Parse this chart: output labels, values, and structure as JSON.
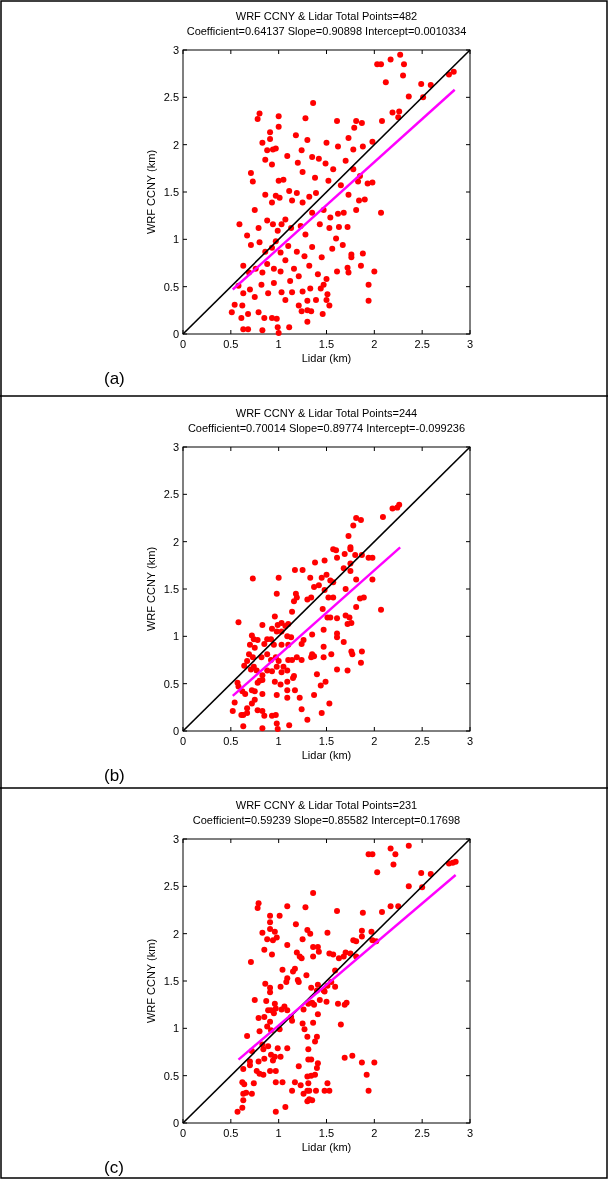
{
  "chart_data": [
    {
      "type": "scatter",
      "title": "WRF CCNY & Lidar Total Points=482",
      "subtitle": "Coefficient=0.64137 Slope=0.90898 Intercept=0.0010334",
      "xlabel": "Lidar (km)",
      "ylabel": "WRF CCNY (km)",
      "annotations": [
        "(a)"
      ],
      "xlim": [
        0,
        3
      ],
      "ylim": [
        0,
        3
      ],
      "xticks": [
        0,
        0.5,
        1,
        1.5,
        2,
        2.5,
        3
      ],
      "yticks": [
        0,
        0.5,
        1,
        1.5,
        2,
        2.5,
        3
      ],
      "series": [
        {
          "color": "#ff0000",
          "marker": "circle",
          "x": [
            2.03,
            2.07,
            2.17,
            2.27,
            2.31,
            2.3,
            2.12,
            2.36,
            2.49,
            2.51,
            2.59,
            2.78,
            2.83,
            2.08,
            2.19,
            2.26,
            2.25,
            0.78,
            0.8,
            1.0,
            1.28,
            1.36,
            1.61,
            1.81,
            1.87,
            1.79,
            1.0,
            0.91,
            1.18,
            1.73,
            1.88,
            1.98,
            0.83,
            0.91,
            0.94,
            0.97,
            0.88,
            1.3,
            1.24,
            1.5,
            1.62,
            0.86,
            0.93,
            1.09,
            1.35,
            1.42,
            1.2,
            1.49,
            1.57,
            1.7,
            1.78,
            0.71,
            0.73,
            1.0,
            1.05,
            1.25,
            1.38,
            1.52,
            1.65,
            1.78,
            1.83,
            1.93,
            1.98,
            1.85,
            0.75,
            0.86,
            0.93,
            0.97,
            1.01,
            1.11,
            1.14,
            1.19,
            1.25,
            1.32,
            1.39,
            1.35,
            1.47,
            1.54,
            1.62,
            1.68,
            1.73,
            1.81,
            1.9,
            1.84,
            2.07,
            0.59,
            0.79,
            0.88,
            0.94,
            0.99,
            1.03,
            1.07,
            1.13,
            1.23,
            1.28,
            1.43,
            1.53,
            1.63,
            1.6,
            1.72,
            0.67,
            0.71,
            0.8,
            0.86,
            0.93,
            0.97,
            1.02,
            1.1,
            1.19,
            1.27,
            1.35,
            1.45,
            1.56,
            1.67,
            1.76,
            1.88,
            1.76,
            1.86,
            1.72,
            1.73,
            1.61,
            2.0,
            0.63,
            0.69,
            0.76,
            0.83,
            0.88,
            0.95,
            1.02,
            1.07,
            1.16,
            1.21,
            1.32,
            1.41,
            1.5,
            1.47,
            0.58,
            0.63,
            0.7,
            0.75,
            0.82,
            0.89,
            0.95,
            1.03,
            1.12,
            1.14,
            1.25,
            1.33,
            1.44,
            1.51,
            1.5,
            1.53,
            1.94,
            1.94,
            0.54,
            0.51,
            0.62,
            0.68,
            0.61,
            0.79,
            0.85,
            0.93,
            0.98,
            1.21,
            1.24,
            1.3,
            1.34,
            1.3,
            1.46,
            1.39,
            1.3,
            0.63,
            0.83,
            0.99,
            1.0,
            1.11,
            1.07,
            0.68
          ],
          "values": [
            2.85,
            2.85,
            2.9,
            2.95,
            2.85,
            2.73,
            2.66,
            2.51,
            2.64,
            2.5,
            2.63,
            2.74,
            2.77,
            2.25,
            2.34,
            2.35,
            2.29,
            2.27,
            2.33,
            2.3,
            2.28,
            2.44,
            2.25,
            2.25,
            2.23,
            2.18,
            2.19,
            2.13,
            2.1,
            2.07,
            1.98,
            2.03,
            2.02,
            2.06,
            1.95,
            1.96,
            1.94,
            2.05,
            1.94,
            2.02,
            1.98,
            1.84,
            1.79,
            1.88,
            1.87,
            1.85,
            1.81,
            1.8,
            1.74,
            1.83,
            1.95,
            1.7,
            1.61,
            1.62,
            1.63,
            1.71,
            1.65,
            1.62,
            1.57,
            1.74,
            1.61,
            1.59,
            1.6,
            1.67,
            1.31,
            1.47,
            1.39,
            1.46,
            1.44,
            1.51,
            1.41,
            1.49,
            1.39,
            1.45,
            1.49,
            1.28,
            1.31,
            1.23,
            1.27,
            1.28,
            1.47,
            1.31,
            1.42,
            1.41,
            1.28,
            1.16,
            1.12,
            1.2,
            1.16,
            1.09,
            1.16,
            1.21,
            1.12,
            1.14,
            1.05,
            1.16,
            1.12,
            1.13,
            1.01,
            1.13,
            1.04,
            0.94,
            0.97,
            0.87,
            0.91,
            0.98,
            0.86,
            0.93,
            0.87,
            0.82,
            0.92,
            0.81,
            0.9,
            0.94,
            0.84,
            0.85,
            0.81,
            0.72,
            0.7,
            0.65,
            0.66,
            0.66,
            0.72,
            0.65,
            0.69,
            0.65,
            0.74,
            0.69,
            0.66,
            0.78,
            0.69,
            0.61,
            0.72,
            0.63,
            0.58,
            0.52,
            0.51,
            0.43,
            0.47,
            0.39,
            0.52,
            0.43,
            0.54,
            0.44,
            0.56,
            0.44,
            0.45,
            0.48,
            0.48,
            0.42,
            0.36,
            0.3,
            0.52,
            0.35,
            0.31,
            0.23,
            0.3,
            0.21,
            0.17,
            0.23,
            0.17,
            0.17,
            0.16,
            0.3,
            0.24,
            0.25,
            0.24,
            0.13,
            0.21,
            0.36,
            0.35,
            0.05,
            0.04,
            0.07,
            0.01,
            0.07,
            0.36,
            0.05
          ]
        },
        {
          "type": "line",
          "color": "#000000",
          "x": [
            0,
            3
          ],
          "values": [
            0,
            3
          ]
        },
        {
          "type": "line",
          "color": "#ff00ff",
          "x": [
            0.52,
            2.84
          ],
          "values": [
            0.47,
            2.58
          ]
        }
      ]
    },
    {
      "type": "scatter",
      "title": "WRF CCNY & Lidar Total Points=244",
      "subtitle": "Coefficient=0.70014 Slope=0.89774 Intercept=-0.099236",
      "xlabel": "Lidar (km)",
      "ylabel": "WRF CCNY (km)",
      "annotations": [
        "(b)"
      ],
      "xlim": [
        0,
        3
      ],
      "ylim": [
        0,
        3
      ],
      "xticks": [
        0,
        0.5,
        1,
        1.5,
        2,
        2.5,
        3
      ],
      "yticks": [
        0,
        0.5,
        1,
        1.5,
        2,
        2.5,
        3
      ],
      "series": [
        {
          "color": "#ff0000",
          "marker": "circle",
          "x": [
            2.19,
            2.24,
            2.26,
            2.09,
            1.81,
            1.86,
            1.78,
            1.73,
            1.75,
            1.75,
            1.57,
            1.6,
            1.61,
            1.69,
            1.8,
            1.87,
            1.94,
            1.98,
            1.48,
            1.38,
            1.17,
            1.25,
            1.5,
            1.68,
            1.75,
            1.75,
            1.42,
            1.33,
            1.37,
            1.45,
            1.54,
            1.57,
            0.73,
            1.0,
            0.98,
            1.18,
            1.19,
            1.48,
            1.52,
            1.57,
            1.7,
            1.81,
            1.98,
            1.89,
            1.85,
            1.81,
            2.07,
            1.14,
            1.16,
            1.3,
            1.34,
            1.46,
            1.51,
            1.54,
            1.61,
            1.7,
            1.74,
            1.72,
            1.76,
            0.58,
            0.83,
            0.96,
            0.99,
            1.03,
            1.07,
            1.1,
            0.93,
            0.98,
            1.03,
            1.09,
            0.72,
            0.74,
            0.78,
            0.88,
            0.92,
            0.7,
            0.75,
            0.85,
            0.95,
            1.03,
            1.1,
            1.13,
            1.24,
            1.26,
            1.35,
            1.47,
            1.61,
            1.61,
            1.68,
            1.76,
            1.77,
            1.87,
            1.86,
            1.55,
            1.47,
            1.47,
            1.35,
            1.37,
            1.34,
            1.61,
            1.72,
            0.69,
            0.73,
            0.67,
            0.74,
            0.82,
            0.88,
            0.92,
            0.97,
            1.0,
            1.05,
            1.1,
            1.19,
            1.14,
            1.24,
            0.64,
            0.71,
            0.77,
            0.83,
            0.88,
            0.93,
            0.98,
            1.03,
            1.09,
            1.16,
            1.15,
            1.4,
            1.44,
            1.49,
            0.57,
            0.58,
            0.62,
            0.65,
            0.72,
            0.78,
            0.8,
            0.83,
            0.75,
            0.75,
            0.72,
            0.83,
            0.96,
            0.98,
            1.02,
            1.09,
            1.09,
            1.09,
            1.17,
            1.22,
            1.37,
            1.24,
            1.53,
            1.45,
            1.3,
            0.52,
            0.54,
            0.61,
            0.63,
            0.67,
            0.67,
            0.63,
            0.78,
            0.83,
            0.85,
            0.93,
            0.97,
            0.98,
            0.99,
            0.83,
            1.11
          ],
          "values": [
            2.35,
            2.36,
            2.39,
            2.26,
            2.25,
            2.23,
            2.17,
            2.06,
            1.94,
            1.92,
            1.92,
            1.91,
            1.83,
            1.87,
            1.86,
            1.86,
            1.83,
            1.83,
            1.8,
            1.78,
            1.7,
            1.7,
            1.65,
            1.72,
            1.69,
            1.77,
            1.54,
            1.62,
            1.52,
            1.62,
            1.59,
            1.57,
            1.61,
            1.62,
            1.45,
            1.45,
            1.41,
            1.49,
            1.41,
            1.41,
            1.5,
            1.6,
            1.6,
            1.41,
            1.4,
            1.31,
            1.28,
            1.26,
            1.37,
            1.39,
            1.41,
            1.29,
            1.2,
            1.2,
            1.19,
            1.22,
            1.2,
            1.13,
            1.14,
            1.15,
            1.12,
            1.21,
            1.12,
            1.14,
            1.11,
            1.13,
            1.08,
            1.05,
            1.05,
            1.0,
            1.01,
            0.97,
            0.96,
            0.97,
            0.97,
            0.91,
            0.88,
            0.92,
            0.91,
            0.91,
            0.91,
            0.99,
            0.92,
            0.96,
            1.02,
            1.07,
            0.99,
            1.03,
            0.94,
            0.84,
            0.81,
            0.84,
            0.72,
            0.81,
            0.78,
            0.89,
            0.81,
            0.79,
            0.78,
            0.65,
            0.64,
            0.81,
            0.78,
            0.74,
            0.68,
            0.78,
            0.81,
            0.75,
            0.78,
            0.74,
            0.68,
            0.75,
            0.78,
            0.75,
            0.75,
            0.69,
            0.65,
            0.64,
            0.59,
            0.64,
            0.63,
            0.68,
            0.62,
            0.64,
            0.58,
            0.56,
            0.6,
            0.48,
            0.52,
            0.51,
            0.47,
            0.42,
            0.39,
            0.43,
            0.51,
            0.53,
            0.54,
            0.42,
            0.33,
            0.29,
            0.39,
            0.52,
            0.38,
            0.49,
            0.52,
            0.43,
            0.35,
            0.43,
            0.35,
            0.38,
            0.23,
            0.29,
            0.19,
            0.12,
            0.21,
            0.3,
            0.17,
            0.17,
            0.24,
            0.19,
            0.05,
            0.22,
            0.21,
            0.16,
            0.16,
            0.17,
            0.08,
            0.02,
            0.03,
            0.06
          ]
        },
        {
          "type": "line",
          "color": "#000000",
          "x": [
            0,
            3
          ],
          "values": [
            0,
            3
          ]
        },
        {
          "type": "line",
          "color": "#ff00ff",
          "x": [
            0.52,
            2.27
          ],
          "values": [
            0.37,
            1.94
          ]
        }
      ]
    },
    {
      "type": "scatter",
      "title": "WRF CCNY & Lidar Total Points=231",
      "subtitle": "Coefficient=0.59239 Slope=0.85582 Intercept=0.17698",
      "xlabel": "Lidar (km)",
      "ylabel": "WRF CCNY (km)",
      "annotations": [
        "(c)"
      ],
      "xlim": [
        0,
        3
      ],
      "ylim": [
        0,
        3
      ],
      "xticks": [
        0,
        0.5,
        1,
        1.5,
        2,
        2.5,
        3
      ],
      "yticks": [
        0,
        0.5,
        1,
        1.5,
        2,
        2.5,
        3
      ],
      "series": [
        {
          "color": "#ff0000",
          "marker": "circle",
          "x": [
            2.36,
            2.17,
            2.22,
            1.94,
            1.98,
            2.2,
            2.78,
            2.82,
            2.85,
            2.03,
            2.49,
            2.59,
            2.36,
            2.5,
            1.36,
            0.79,
            0.78,
            1.09,
            1.28,
            1.61,
            2.08,
            2.17,
            2.25,
            1.88,
            0.91,
            1.01,
            0.91,
            0.91,
            1.18,
            1.3,
            1.33,
            0.83,
            0.96,
            1.51,
            1.87,
            1.97,
            1.87,
            0.88,
            0.94,
            0.98,
            1.25,
            1.09,
            1.78,
            1.81,
            1.98,
            2.02,
            0.85,
            0.93,
            1.19,
            1.42,
            1.36,
            1.41,
            1.22,
            1.24,
            1.36,
            1.53,
            1.57,
            1.63,
            1.68,
            1.75,
            1.81,
            1.7,
            0.71,
            1.04,
            1.15,
            1.17,
            1.2,
            1.21,
            1.09,
            1.08,
            1.02,
            0.91,
            0.91,
            0.86,
            1.29,
            1.34,
            1.4,
            1.41,
            1.47,
            1.51,
            1.55,
            1.59,
            1.59,
            1.48,
            0.75,
            0.87,
            0.96,
            0.97,
            1.03,
            1.06,
            1.09,
            1.13,
            1.14,
            0.89,
            0.92,
            0.95,
            0.79,
            0.85,
            1.26,
            1.31,
            1.35,
            1.37,
            1.41,
            1.43,
            1.5,
            1.62,
            1.69,
            1.71,
            1.65,
            1.25,
            1.27,
            1.36,
            0.91,
            0.88,
            0.92,
            0.8,
            0.67,
            1.01,
            1.3,
            1.4,
            1.38,
            1.31,
            0.83,
            0.84,
            0.89,
            0.99,
            1.09,
            0.72,
            0.7,
            0.7,
            0.79,
            0.85,
            0.94,
            0.92,
            0.96,
            1.02,
            0.91,
            0.97,
            0.77,
            0.8,
            0.84,
            0.63,
            0.64,
            0.62,
            0.66,
            0.63,
            0.63,
            0.62,
            0.57,
            0.72,
            0.74,
            0.97,
            1.04,
            0.97,
            1.07,
            1.14,
            1.21,
            1.23,
            1.17,
            1.26,
            1.3,
            1.31,
            1.3,
            1.32,
            1.3,
            1.32,
            1.35,
            1.34,
            1.38,
            1.41,
            1.4,
            1.31,
            1.34,
            1.39,
            1.51,
            1.48,
            1.53,
            1.69,
            1.77,
            1.87,
            2.0,
            1.92,
            1.94
          ],
          "values": [
            2.93,
            2.9,
            2.84,
            2.84,
            2.84,
            2.73,
            2.74,
            2.75,
            2.76,
            2.65,
            2.64,
            2.63,
            2.5,
            2.49,
            2.43,
            2.32,
            2.27,
            2.29,
            2.28,
            2.24,
            2.23,
            2.29,
            2.29,
            2.22,
            2.19,
            2.19,
            2.12,
            2.05,
            2.1,
            2.04,
            2.0,
            2.01,
            2.02,
            2.01,
            2.03,
            2.02,
            1.97,
            1.94,
            1.93,
            1.96,
            1.94,
            1.88,
            1.93,
            1.92,
            1.93,
            1.92,
            1.83,
            1.78,
            1.8,
            1.81,
            1.86,
            1.86,
            1.76,
            1.74,
            1.76,
            1.79,
            1.78,
            1.74,
            1.76,
            1.79,
            1.76,
            1.8,
            1.7,
            1.62,
            1.6,
            1.63,
            1.51,
            1.49,
            1.53,
            1.49,
            1.44,
            1.43,
            1.38,
            1.47,
            1.56,
            1.43,
            1.4,
            1.46,
            1.4,
            1.45,
            1.49,
            1.44,
            1.61,
            1.39,
            1.3,
            1.29,
            1.26,
            1.21,
            1.2,
            1.23,
            1.19,
            1.12,
            1.08,
            1.19,
            1.19,
            1.16,
            1.11,
            1.12,
            1.2,
            1.26,
            1.27,
            1.25,
            1.15,
            1.3,
            1.28,
            1.26,
            1.25,
            1.27,
            1.04,
            1.05,
            0.99,
            1.06,
            1.07,
            1.02,
            0.98,
            0.97,
            0.92,
            0.99,
            0.91,
            0.91,
            0.86,
            0.78,
            0.83,
            0.78,
            0.81,
            0.79,
            0.79,
            0.76,
            0.65,
            0.61,
            0.65,
            0.68,
            0.66,
            0.72,
            0.7,
            0.7,
            0.55,
            0.55,
            0.55,
            0.52,
            0.51,
            0.57,
            0.41,
            0.43,
            0.32,
            0.31,
            0.24,
            0.16,
            0.12,
            0.31,
            0.42,
            0.43,
            0.43,
            0.12,
            0.17,
            0.34,
            0.6,
            0.4,
            0.43,
            0.31,
            0.49,
            0.42,
            0.34,
            0.34,
            0.23,
            0.25,
            0.24,
            0.5,
            0.51,
            0.63,
            0.58,
            0.67,
            0.67,
            0.34,
            0.42,
            0.34,
            0.34,
            0.69,
            0.71,
            0.64,
            0.64,
            0.51,
            0.34
          ]
        },
        {
          "type": "line",
          "color": "#000000",
          "x": [
            0,
            3
          ],
          "values": [
            0,
            3
          ]
        },
        {
          "type": "line",
          "color": "#ff00ff",
          "x": [
            0.58,
            2.85
          ],
          "values": [
            0.67,
            2.62
          ]
        }
      ]
    }
  ]
}
